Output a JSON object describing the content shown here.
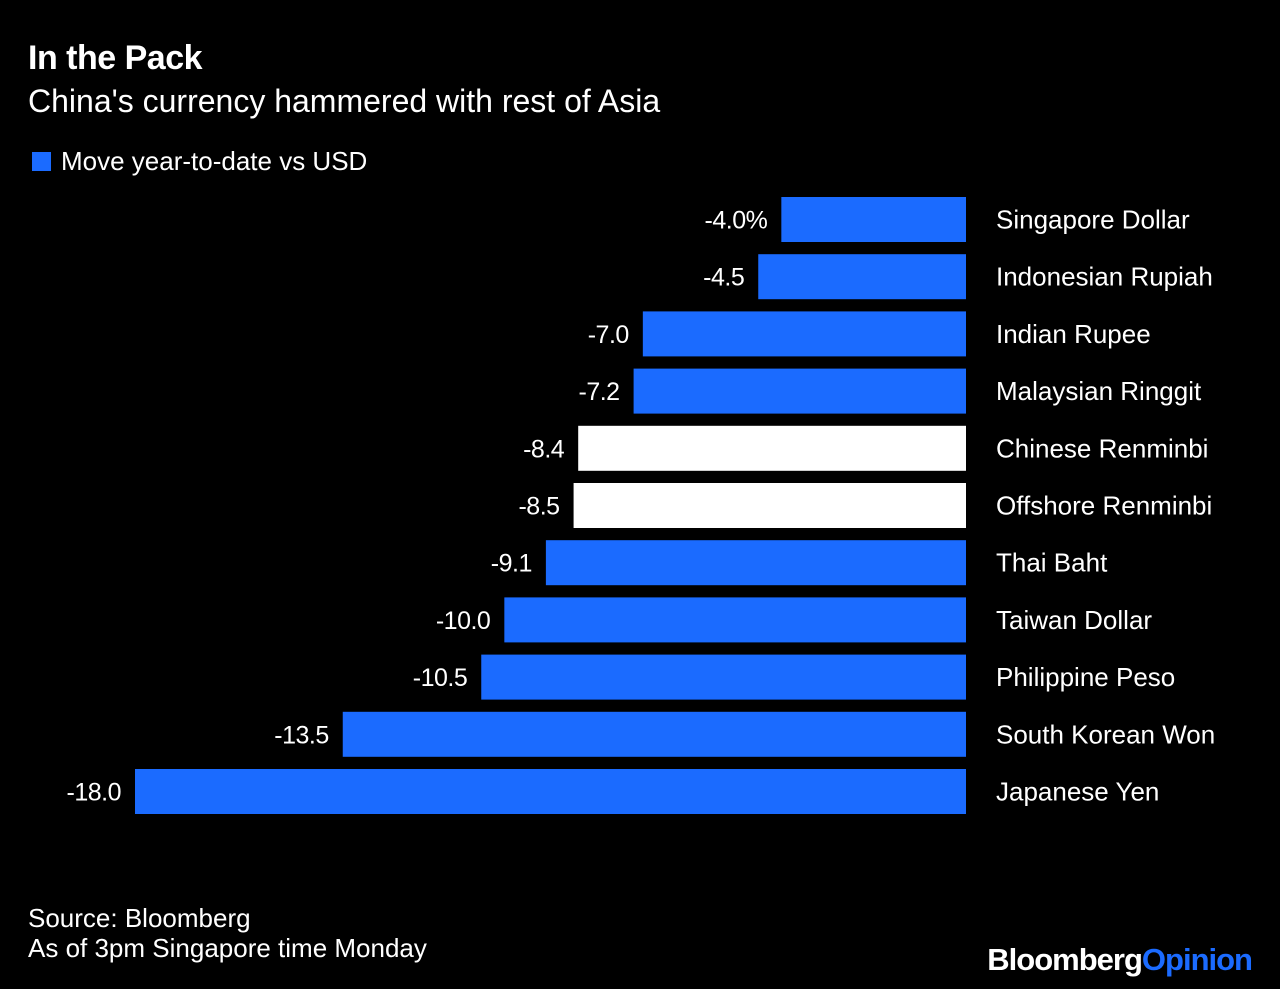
{
  "header": {
    "title": "In the Pack",
    "subtitle": "China's currency hammered with rest of Asia"
  },
  "legend": {
    "label": "Move year-to-date vs USD",
    "color": "#1b6bff"
  },
  "colors": {
    "accent": "#1b6bff",
    "highlight": "#ffffff",
    "background": "#000000"
  },
  "chart_data": {
    "type": "bar",
    "orientation": "horizontal",
    "categories": [
      "Singapore Dollar",
      "Indonesian Rupiah",
      "Indian Rupee",
      "Malaysian Ringgit",
      "Chinese Renminbi",
      "Offshore Renminbi",
      "Thai Baht",
      "Taiwan Dollar",
      "Philippine Peso",
      "South Korean Won",
      "Japanese Yen"
    ],
    "series": [
      {
        "name": "Move year-to-date vs USD",
        "values": [
          -4.0,
          -4.5,
          -7.0,
          -7.2,
          -8.4,
          -8.5,
          -9.1,
          -10.0,
          -10.5,
          -13.5,
          -18.0
        ],
        "value_labels": [
          "-4.0%",
          "-4.5",
          "-7.0",
          "-7.2",
          "-8.4",
          "-8.5",
          "-9.1",
          "-10.0",
          "-10.5",
          "-13.5",
          "-18.0"
        ]
      }
    ],
    "highlighted_categories": [
      "Chinese Renminbi",
      "Offshore Renminbi"
    ],
    "xlim": [
      -18.0,
      0
    ],
    "grid": false,
    "legend_position": "top-left",
    "title": "In the Pack",
    "subtitle": "China's currency hammered with rest of Asia"
  },
  "footer": {
    "source": "Source: Bloomberg",
    "note": "As of 3pm Singapore time Monday"
  },
  "brand": {
    "part1": "Bloomberg",
    "part2": "Opinion",
    "part2_color": "#1b6bff"
  }
}
